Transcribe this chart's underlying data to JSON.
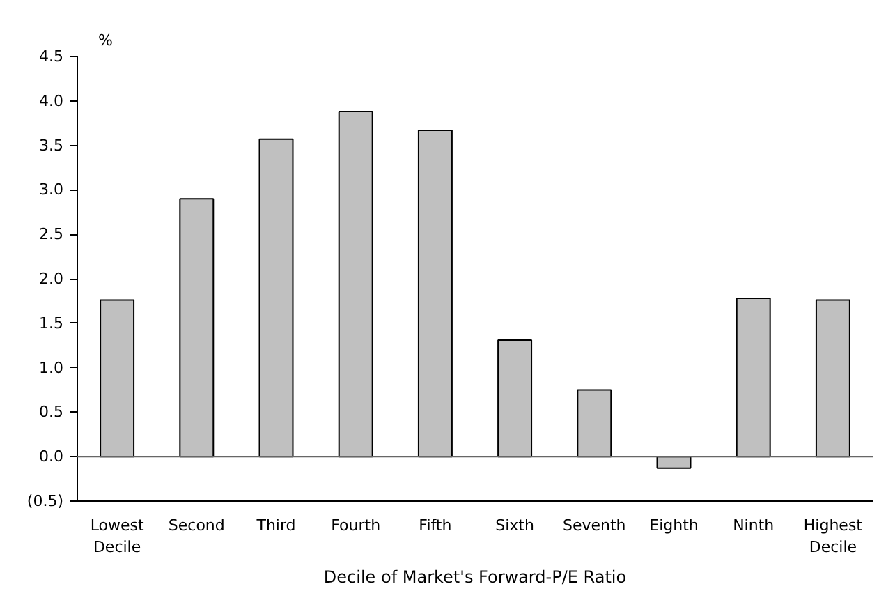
{
  "chart_data": {
    "type": "bar",
    "ylabel": "%",
    "xlabel": "Decile of Market's Forward-P/E Ratio",
    "categories": [
      "Lowest\nDecile",
      "Second",
      "Third",
      "Fourth",
      "Fifth",
      "Sixth",
      "Seventh",
      "Eighth",
      "Ninth",
      "Highest\nDecile"
    ],
    "values": [
      1.76,
      2.9,
      3.57,
      3.88,
      3.67,
      1.31,
      0.75,
      -0.13,
      1.78,
      1.76
    ],
    "color": "#c0c0c0",
    "ylim": [
      -0.5,
      4.5
    ],
    "yticks": [
      {
        "value": -0.5,
        "label": "(0.5)"
      },
      {
        "value": 0,
        "label": "0.0"
      },
      {
        "value": 0.5,
        "label": "0.5"
      },
      {
        "value": 1,
        "label": "1.0"
      },
      {
        "value": 1.5,
        "label": "1.5"
      },
      {
        "value": 2,
        "label": "2.0"
      },
      {
        "value": 2.5,
        "label": "2.5"
      },
      {
        "value": 3,
        "label": "3.0"
      },
      {
        "value": 3.5,
        "label": "3.5"
      },
      {
        "value": 4,
        "label": "4.0"
      },
      {
        "value": 4.5,
        "label": "4.5"
      }
    ],
    "ref_lines": [
      {
        "axis": "y",
        "value": 0
      }
    ],
    "grid": false
  }
}
